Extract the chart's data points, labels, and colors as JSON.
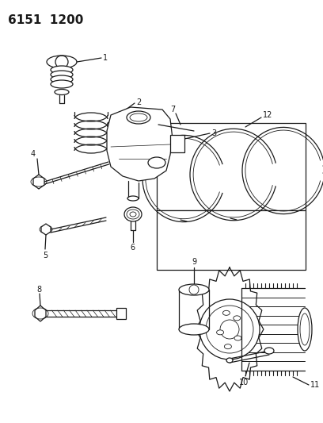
{
  "title_code": "6151  1200",
  "background_color": "#ffffff",
  "line_color": "#1a1a1a",
  "fig_width": 4.08,
  "fig_height": 5.33,
  "dpi": 100
}
